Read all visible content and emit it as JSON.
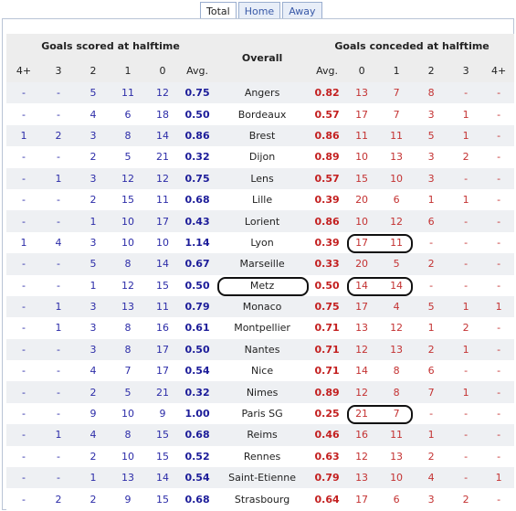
{
  "tabs": [
    "Total",
    "Home",
    "Away"
  ],
  "active_tab": 0,
  "header": {
    "scored_title": "Goals scored at halftime",
    "overall": "Overall",
    "conceded_title": "Goals conceded at halftime",
    "scored_cols": [
      "4+",
      "3",
      "2",
      "1",
      "0",
      "Avg."
    ],
    "conceded_cols": [
      "Avg.",
      "0",
      "1",
      "2",
      "3",
      "4+"
    ]
  },
  "rows": [
    {
      "team": "Angers",
      "scored": [
        "-",
        "-",
        "5",
        "11",
        "12"
      ],
      "scored_avg": "0.75",
      "conceded_avg": "0.82",
      "conceded": [
        "13",
        "7",
        "8",
        "-",
        "-"
      ]
    },
    {
      "team": "Bordeaux",
      "scored": [
        "-",
        "-",
        "4",
        "6",
        "18"
      ],
      "scored_avg": "0.50",
      "conceded_avg": "0.57",
      "conceded": [
        "17",
        "7",
        "3",
        "1",
        "-"
      ]
    },
    {
      "team": "Brest",
      "scored": [
        "1",
        "2",
        "3",
        "8",
        "14"
      ],
      "scored_avg": "0.86",
      "conceded_avg": "0.86",
      "conceded": [
        "11",
        "11",
        "5",
        "1",
        "-"
      ]
    },
    {
      "team": "Dijon",
      "scored": [
        "-",
        "-",
        "2",
        "5",
        "21"
      ],
      "scored_avg": "0.32",
      "conceded_avg": "0.89",
      "conceded": [
        "10",
        "13",
        "3",
        "2",
        "-"
      ]
    },
    {
      "team": "Lens",
      "scored": [
        "-",
        "1",
        "3",
        "12",
        "12"
      ],
      "scored_avg": "0.75",
      "conceded_avg": "0.57",
      "conceded": [
        "15",
        "10",
        "3",
        "-",
        "-"
      ]
    },
    {
      "team": "Lille",
      "scored": [
        "-",
        "-",
        "2",
        "15",
        "11"
      ],
      "scored_avg": "0.68",
      "conceded_avg": "0.39",
      "conceded": [
        "20",
        "6",
        "1",
        "1",
        "-"
      ]
    },
    {
      "team": "Lorient",
      "scored": [
        "-",
        "-",
        "1",
        "10",
        "17"
      ],
      "scored_avg": "0.43",
      "conceded_avg": "0.86",
      "conceded": [
        "10",
        "12",
        "6",
        "-",
        "-"
      ]
    },
    {
      "team": "Lyon",
      "scored": [
        "1",
        "4",
        "3",
        "10",
        "10"
      ],
      "scored_avg": "1.14",
      "conceded_avg": "0.39",
      "conceded": [
        "17",
        "11",
        "-",
        "-",
        "-"
      ]
    },
    {
      "team": "Marseille",
      "scored": [
        "-",
        "-",
        "5",
        "8",
        "14"
      ],
      "scored_avg": "0.67",
      "conceded_avg": "0.33",
      "conceded": [
        "20",
        "5",
        "2",
        "-",
        "-"
      ]
    },
    {
      "team": "Metz",
      "scored": [
        "-",
        "-",
        "1",
        "12",
        "15"
      ],
      "scored_avg": "0.50",
      "conceded_avg": "0.50",
      "conceded": [
        "14",
        "14",
        "-",
        "-",
        "-"
      ]
    },
    {
      "team": "Monaco",
      "scored": [
        "-",
        "1",
        "3",
        "13",
        "11"
      ],
      "scored_avg": "0.79",
      "conceded_avg": "0.75",
      "conceded": [
        "17",
        "4",
        "5",
        "1",
        "1"
      ]
    },
    {
      "team": "Montpellier",
      "scored": [
        "-",
        "1",
        "3",
        "8",
        "16"
      ],
      "scored_avg": "0.61",
      "conceded_avg": "0.71",
      "conceded": [
        "13",
        "12",
        "1",
        "2",
        "-"
      ]
    },
    {
      "team": "Nantes",
      "scored": [
        "-",
        "-",
        "3",
        "8",
        "17"
      ],
      "scored_avg": "0.50",
      "conceded_avg": "0.71",
      "conceded": [
        "12",
        "13",
        "2",
        "1",
        "-"
      ]
    },
    {
      "team": "Nice",
      "scored": [
        "-",
        "-",
        "4",
        "7",
        "17"
      ],
      "scored_avg": "0.54",
      "conceded_avg": "0.71",
      "conceded": [
        "14",
        "8",
        "6",
        "-",
        "-"
      ]
    },
    {
      "team": "Nimes",
      "scored": [
        "-",
        "-",
        "2",
        "5",
        "21"
      ],
      "scored_avg": "0.32",
      "conceded_avg": "0.89",
      "conceded": [
        "12",
        "8",
        "7",
        "1",
        "-"
      ]
    },
    {
      "team": "Paris SG",
      "scored": [
        "-",
        "-",
        "9",
        "10",
        "9"
      ],
      "scored_avg": "1.00",
      "conceded_avg": "0.25",
      "conceded": [
        "21",
        "7",
        "-",
        "-",
        "-"
      ]
    },
    {
      "team": "Reims",
      "scored": [
        "-",
        "1",
        "4",
        "8",
        "15"
      ],
      "scored_avg": "0.68",
      "conceded_avg": "0.46",
      "conceded": [
        "16",
        "11",
        "1",
        "-",
        "-"
      ]
    },
    {
      "team": "Rennes",
      "scored": [
        "-",
        "-",
        "2",
        "10",
        "15"
      ],
      "scored_avg": "0.52",
      "conceded_avg": "0.63",
      "conceded": [
        "12",
        "13",
        "2",
        "-",
        "-"
      ]
    },
    {
      "team": "Saint-Etienne",
      "scored": [
        "-",
        "-",
        "1",
        "13",
        "14"
      ],
      "scored_avg": "0.54",
      "conceded_avg": "0.79",
      "conceded": [
        "13",
        "10",
        "4",
        "-",
        "1"
      ]
    },
    {
      "team": "Strasbourg",
      "scored": [
        "-",
        "2",
        "2",
        "9",
        "15"
      ],
      "scored_avg": "0.68",
      "conceded_avg": "0.64",
      "conceded": [
        "17",
        "6",
        "3",
        "2",
        "-"
      ]
    }
  ],
  "highlights": {
    "team_rows": [
      9
    ],
    "conceded_rows": [
      7,
      9,
      15
    ]
  },
  "colors": {
    "scored_text": "#2c2ca8",
    "conceded_text": "#c43232",
    "header_bg": "#ededed",
    "stripe_bg": "#eef0f3"
  }
}
